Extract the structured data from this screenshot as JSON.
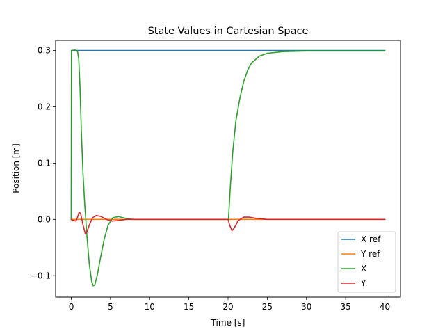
{
  "chart_data": {
    "type": "line",
    "title": "State Values in Cartesian Space",
    "xlabel": "Time [s]",
    "ylabel": "Position [m]",
    "xlim": [
      -2,
      42
    ],
    "ylim": [
      -0.138,
      0.318
    ],
    "xticks": [
      0,
      5,
      10,
      15,
      20,
      25,
      30,
      35,
      40
    ],
    "xtick_labels": [
      "0",
      "5",
      "10",
      "15",
      "20",
      "25",
      "30",
      "35",
      "40"
    ],
    "yticks": [
      -0.1,
      0.0,
      0.1,
      0.2,
      0.3
    ],
    "ytick_labels": [
      "−0.1",
      "0.0",
      "0.1",
      "0.2",
      "0.3"
    ],
    "grid": false,
    "legend_position": "lower-right",
    "series": [
      {
        "name": "X ref",
        "color": "#1f77b4",
        "points": [
          [
            0,
            0
          ],
          [
            0.02,
            0.3
          ],
          [
            20,
            0.3
          ],
          [
            20.02,
            0.3
          ],
          [
            40,
            0.3
          ]
        ]
      },
      {
        "name": "Y ref",
        "color": "#ff7f0e",
        "points": [
          [
            0,
            0
          ],
          [
            40,
            0
          ]
        ]
      },
      {
        "name": "X",
        "color": "#2ca02c",
        "points": [
          [
            0,
            0
          ],
          [
            0.03,
            0.3
          ],
          [
            0.5,
            0.301
          ],
          [
            0.8,
            0.298
          ],
          [
            0.95,
            0.285
          ],
          [
            1.1,
            0.24
          ],
          [
            1.3,
            0.15
          ],
          [
            1.5,
            0.08
          ],
          [
            1.7,
            0.03
          ],
          [
            2.0,
            -0.03
          ],
          [
            2.3,
            -0.08
          ],
          [
            2.6,
            -0.11
          ],
          [
            2.8,
            -0.118
          ],
          [
            3.0,
            -0.116
          ],
          [
            3.3,
            -0.1
          ],
          [
            3.7,
            -0.07
          ],
          [
            4.2,
            -0.035
          ],
          [
            4.7,
            -0.01
          ],
          [
            5.3,
            0.003
          ],
          [
            6.0,
            0.005
          ],
          [
            6.6,
            0.003
          ],
          [
            7.2,
            0.001
          ],
          [
            8.0,
            0.0
          ],
          [
            10,
            0.0
          ],
          [
            20,
            0.0
          ],
          [
            20.05,
            0.0
          ],
          [
            20.3,
            0.06
          ],
          [
            20.6,
            0.12
          ],
          [
            21.0,
            0.175
          ],
          [
            21.5,
            0.215
          ],
          [
            22.0,
            0.245
          ],
          [
            22.5,
            0.265
          ],
          [
            23.0,
            0.278
          ],
          [
            24.0,
            0.29
          ],
          [
            25.0,
            0.295
          ],
          [
            27.0,
            0.298
          ],
          [
            30.0,
            0.299
          ],
          [
            40,
            0.299
          ]
        ]
      },
      {
        "name": "Y",
        "color": "#d62728",
        "points": [
          [
            0,
            0
          ],
          [
            0.3,
            -0.002
          ],
          [
            0.6,
            -0.003
          ],
          [
            0.8,
            0.004
          ],
          [
            1.0,
            0.013
          ],
          [
            1.2,
            0.01
          ],
          [
            1.5,
            -0.01
          ],
          [
            1.8,
            -0.026
          ],
          [
            2.0,
            -0.022
          ],
          [
            2.3,
            -0.01
          ],
          [
            2.7,
            0.003
          ],
          [
            3.2,
            0.007
          ],
          [
            3.8,
            0.005
          ],
          [
            4.5,
            0.0
          ],
          [
            5.2,
            -0.003
          ],
          [
            6.0,
            -0.002
          ],
          [
            7.0,
            0.0
          ],
          [
            10,
            0.0
          ],
          [
            20.0,
            0.0
          ],
          [
            20.2,
            -0.01
          ],
          [
            20.5,
            -0.02
          ],
          [
            20.8,
            -0.015
          ],
          [
            21.3,
            -0.002
          ],
          [
            22.0,
            0.004
          ],
          [
            22.7,
            0.004
          ],
          [
            23.5,
            0.002
          ],
          [
            25.0,
            0.0
          ],
          [
            40,
            0.0
          ]
        ]
      }
    ]
  }
}
